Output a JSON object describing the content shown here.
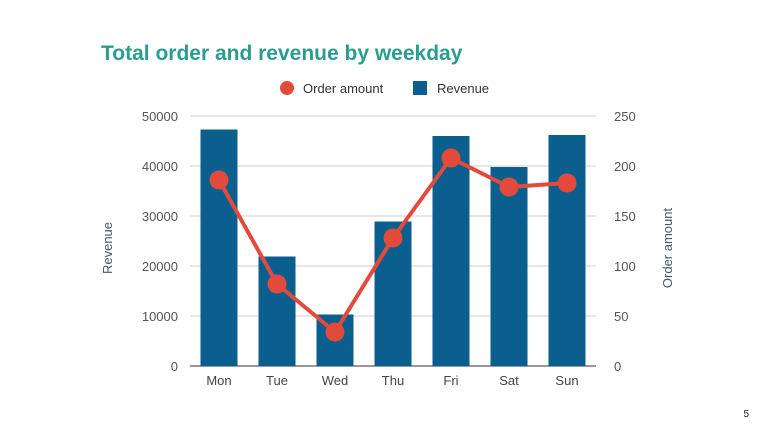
{
  "page": {
    "number": "5"
  },
  "chart_data": {
    "type": "bar",
    "title": "Total order and revenue by weekday",
    "categories": [
      "Mon",
      "Tue",
      "Wed",
      "Thu",
      "Fri",
      "Sat",
      "Sun"
    ],
    "series": [
      {
        "name": "Revenue",
        "type": "bar",
        "axis": "left",
        "color": "#0b5f8f",
        "values": [
          47300,
          21900,
          10300,
          28900,
          46000,
          39800,
          46200
        ]
      },
      {
        "name": "Order amount",
        "type": "line",
        "axis": "right",
        "color": "#e24b3b",
        "values": [
          186,
          82,
          34,
          128,
          208,
          179,
          183
        ]
      }
    ],
    "ylabel": "Revenue",
    "ylabel_right": "Order amount",
    "ylim": [
      0,
      50000
    ],
    "ylim_right": [
      0,
      250
    ],
    "yticks": [
      "0",
      "10000",
      "20000",
      "30000",
      "40000",
      "50000"
    ],
    "yticks_right": [
      "0",
      "50",
      "100",
      "150",
      "200",
      "250"
    ],
    "legend": {
      "position": "top",
      "entries": [
        "Order amount",
        "Revenue"
      ]
    },
    "grid": true
  }
}
